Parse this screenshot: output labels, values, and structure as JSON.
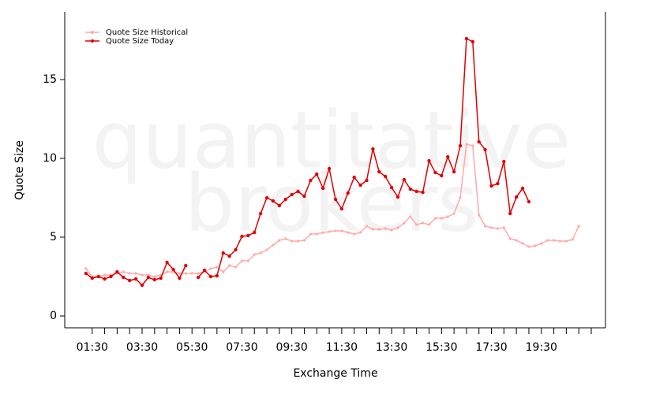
{
  "chart_data": {
    "type": "line",
    "watermark": [
      "quantitative",
      "brokers"
    ],
    "xlabel": "Exchange Time",
    "ylabel": "Quote Size",
    "x": [
      1.25,
      1.5,
      1.75,
      2,
      2.25,
      2.5,
      2.75,
      3,
      3.25,
      3.5,
      3.75,
      4,
      4.25,
      4.5,
      4.75,
      5,
      5.25,
      5.5,
      5.75,
      6,
      6.25,
      6.5,
      6.75,
      7,
      7.25,
      7.5,
      7.75,
      8,
      8.25,
      8.5,
      8.75,
      9,
      9.25,
      9.5,
      9.75,
      10,
      10.25,
      10.5,
      10.75,
      11,
      11.25,
      11.5,
      11.75,
      12,
      12.25,
      12.5,
      12.75,
      13,
      13.25,
      13.5,
      13.75,
      14,
      14.25,
      14.5,
      14.75,
      15,
      15.25,
      15.5,
      15.75,
      16,
      16.25,
      16.5,
      16.75,
      17,
      17.25,
      17.5,
      17.75,
      18,
      18.25,
      18.5,
      18.75,
      19,
      19.25,
      19.5,
      19.75,
      20,
      20.25,
      20.5,
      20.75,
      21
    ],
    "series": [
      {
        "name": "Quote Size Historical",
        "color": "#ffaaaa",
        "values": [
          3.0,
          2.5,
          2.5,
          2.6,
          2.6,
          2.7,
          2.8,
          2.7,
          2.7,
          2.6,
          2.6,
          2.5,
          2.6,
          2.8,
          2.8,
          2.7,
          2.7,
          2.7,
          2.7,
          2.8,
          3.0,
          3.1,
          2.8,
          3.2,
          3.1,
          3.5,
          3.5,
          3.9,
          4.0,
          4.2,
          4.5,
          4.8,
          4.9,
          4.75,
          4.75,
          4.8,
          5.2,
          5.2,
          5.3,
          5.35,
          5.4,
          5.4,
          5.3,
          5.2,
          5.3,
          5.7,
          5.5,
          5.5,
          5.55,
          5.45,
          5.6,
          5.9,
          6.3,
          5.8,
          5.9,
          5.8,
          6.2,
          6.2,
          6.3,
          6.5,
          7.5,
          10.9,
          10.8,
          6.4,
          5.7,
          5.6,
          5.55,
          5.6,
          4.9,
          4.8,
          4.6,
          4.4,
          4.45,
          4.6,
          4.8,
          4.8,
          4.75,
          4.75,
          4.85,
          5.7
        ]
      },
      {
        "name": "Quote Size Today",
        "color": "#e00000",
        "values": [
          2.7,
          2.4,
          2.5,
          2.35,
          2.5,
          2.8,
          2.45,
          2.25,
          2.35,
          1.95,
          2.45,
          2.3,
          2.4,
          3.4,
          2.95,
          2.4,
          3.2,
          null,
          2.45,
          2.9,
          2.5,
          2.55,
          4.0,
          3.8,
          4.2,
          5.05,
          5.1,
          5.3,
          6.5,
          7.5,
          7.3,
          7.0,
          7.4,
          7.7,
          7.9,
          7.6,
          8.6,
          9.0,
          8.1,
          9.35,
          7.4,
          6.8,
          7.8,
          8.8,
          8.3,
          8.6,
          10.6,
          9.15,
          8.85,
          8.15,
          7.55,
          8.65,
          8.05,
          7.9,
          7.85,
          9.85,
          9.1,
          8.9,
          10.1,
          9.15,
          10.8,
          17.6,
          17.4,
          11.05,
          10.55,
          8.25,
          8.4,
          9.8,
          6.5,
          7.55,
          8.1,
          7.25,
          null,
          null,
          null,
          null,
          null,
          null,
          null,
          null
        ]
      }
    ],
    "xlim": [
      0.4,
      22.07
    ],
    "ylim": [
      -0.75,
      19.3
    ],
    "yticks": [
      0,
      5,
      10,
      15
    ],
    "xticks": [
      {
        "value": 1.5,
        "label": "01:30"
      },
      {
        "value": 2,
        "label": null
      },
      {
        "value": 2.5,
        "label": null
      },
      {
        "value": 3,
        "label": null
      },
      {
        "value": 3.5,
        "label": "03:30"
      },
      {
        "value": 4,
        "label": null
      },
      {
        "value": 4.5,
        "label": null
      },
      {
        "value": 5,
        "label": null
      },
      {
        "value": 5.5,
        "label": "05:30"
      },
      {
        "value": 6,
        "label": null
      },
      {
        "value": 6.5,
        "label": null
      },
      {
        "value": 7,
        "label": null
      },
      {
        "value": 7.5,
        "label": "07:30"
      },
      {
        "value": 8,
        "label": null
      },
      {
        "value": 8.5,
        "label": null
      },
      {
        "value": 9,
        "label": null
      },
      {
        "value": 9.5,
        "label": "09:30"
      },
      {
        "value": 10,
        "label": null
      },
      {
        "value": 10.5,
        "label": null
      },
      {
        "value": 11,
        "label": null
      },
      {
        "value": 11.5,
        "label": "11:30"
      },
      {
        "value": 12,
        "label": null
      },
      {
        "value": 12.5,
        "label": null
      },
      {
        "value": 13,
        "label": null
      },
      {
        "value": 13.5,
        "label": "13:30"
      },
      {
        "value": 14,
        "label": null
      },
      {
        "value": 14.5,
        "label": null
      },
      {
        "value": 15,
        "label": null
      },
      {
        "value": 15.5,
        "label": "15:30"
      },
      {
        "value": 16,
        "label": null
      },
      {
        "value": 16.5,
        "label": null
      },
      {
        "value": 17,
        "label": null
      },
      {
        "value": 17.5,
        "label": "17:30"
      },
      {
        "value": 18,
        "label": null
      },
      {
        "value": 18.5,
        "label": null
      },
      {
        "value": 19,
        "label": null
      },
      {
        "value": 19.5,
        "label": "19:30"
      },
      {
        "value": 20,
        "label": null
      },
      {
        "value": 20.5,
        "label": null
      },
      {
        "value": 21,
        "label": null
      },
      {
        "value": 21.5,
        "label": null
      }
    ],
    "legend": "upper left"
  }
}
